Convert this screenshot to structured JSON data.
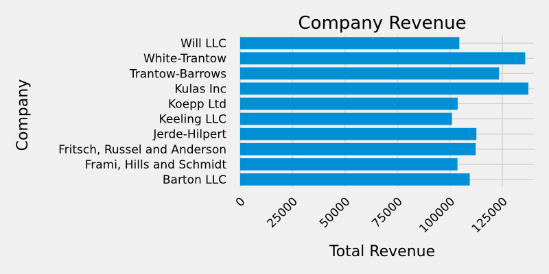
{
  "chart_data": {
    "type": "bar",
    "orientation": "horizontal",
    "title": "Company Revenue",
    "xlabel": "Total Revenue",
    "ylabel": "Company",
    "categories": [
      "Barton LLC",
      "Frami, Hills and Schmidt",
      "Fritsch, Russel and Anderson",
      "Jerde-Hilpert",
      "Keeling LLC",
      "Koepp Ltd",
      "Kulas Inc",
      "Trantow-Barrows",
      "White-Trantow",
      "Will LLC"
    ],
    "values": [
      109438,
      103569,
      112214,
      112591,
      100934,
      103660,
      137352,
      123381,
      135841,
      104438
    ],
    "xlim": [
      0,
      140000
    ],
    "xticks": [
      0,
      25000,
      50000,
      75000,
      100000,
      125000
    ],
    "xtick_labels": [
      "0",
      "25000",
      "50000",
      "75000",
      "100000",
      "125000"
    ],
    "grid": true,
    "bar_color": "#008fd5",
    "background_color": "#f0f0f0",
    "grid_color": "#cbcbcb"
  }
}
